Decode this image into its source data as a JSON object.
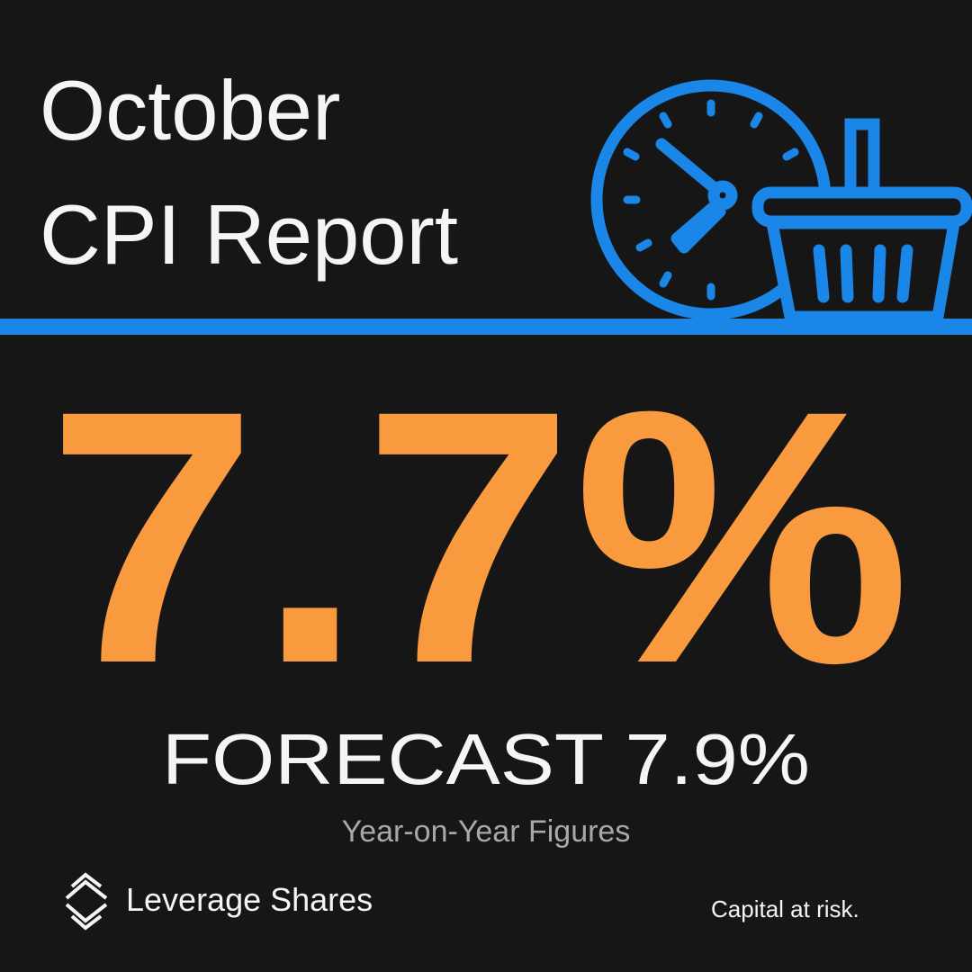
{
  "header": {
    "title_lines": [
      "October",
      "CPI Report"
    ]
  },
  "headline": "7.7%",
  "forecast": "FORECAST 7.9%",
  "subtitle": "Year-on-Year Figures",
  "footer": {
    "brand": "Leverage Shares",
    "disclaimer": "Capital at risk."
  }
}
